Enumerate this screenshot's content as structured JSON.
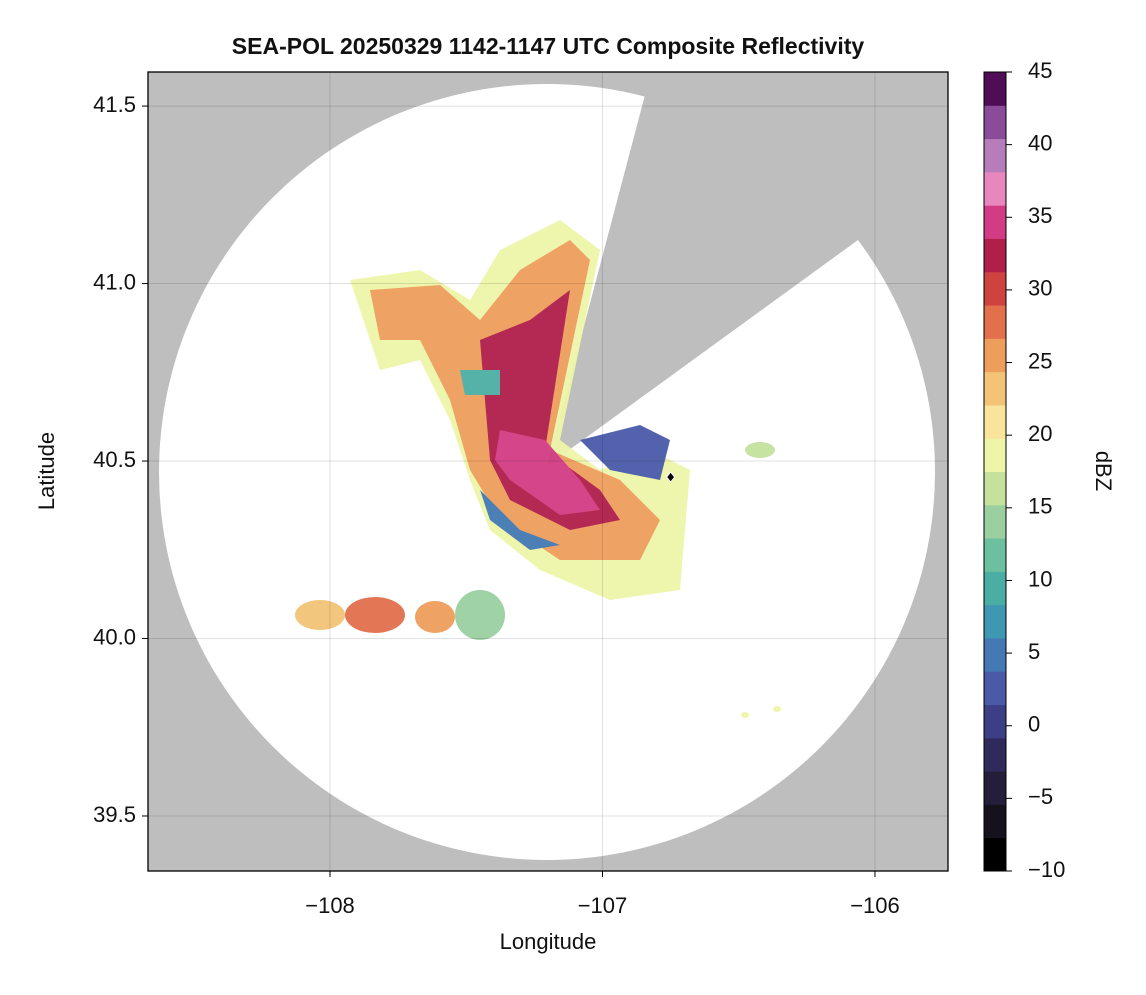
{
  "chart_data": {
    "type": "heatmap",
    "title": "SEA-POL 20250329 1142-1147 UTC Composite Reflectivity",
    "xlabel": "Longitude",
    "ylabel": "Latitude",
    "xlim": [
      -108.668,
      -105.732
    ],
    "ylim": [
      39.345,
      41.596
    ],
    "xticks": [
      {
        "value": -108,
        "label": "−108"
      },
      {
        "value": -107,
        "label": "−107"
      },
      {
        "value": -106,
        "label": "−106"
      }
    ],
    "yticks": [
      {
        "value": 39.5,
        "label": "39.5"
      },
      {
        "value": 40,
        "label": "40.0"
      },
      40.5,
      {
        "value": 41,
        "label": "41.0"
      },
      41.5
    ],
    "grid": true,
    "colorbar": {
      "label": "dBZ",
      "lim": [
        -10,
        45
      ],
      "ticks": [
        {
          "value": -10,
          "label": "−10"
        },
        {
          "value": -5,
          "label": "−5"
        },
        0,
        5,
        10,
        15,
        20,
        25,
        30,
        35,
        40,
        45
      ],
      "colors": [
        "#000000",
        "#15121e",
        "#241e3a",
        "#302a5c",
        "#3d3f86",
        "#4a5aa8",
        "#4479b4",
        "#3f97b2",
        "#4baea4",
        "#6cc0a0",
        "#9ad0a0",
        "#c4e29c",
        "#eef5a8",
        "#f8e49a",
        "#f3c478",
        "#ee9e5c",
        "#e2704c",
        "#cf4240",
        "#b01e4a",
        "#d23c84",
        "#e887bd",
        "#b77dbb",
        "#8a4b98",
        "#4e0d56"
      ]
    },
    "marker": {
      "x": -106.75,
      "y": 40.455,
      "color": "#000000"
    }
  }
}
